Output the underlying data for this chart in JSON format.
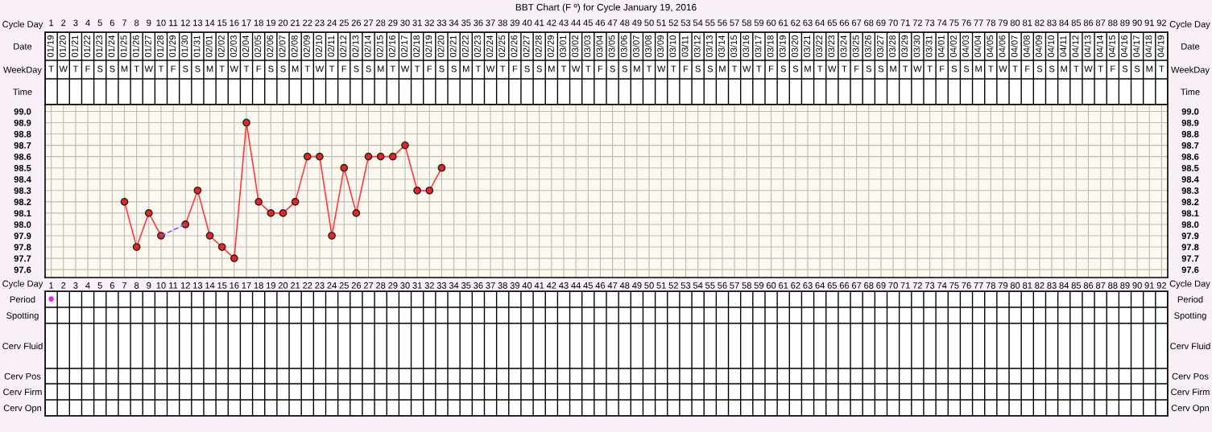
{
  "chart_data": [
    {
      "type": "heatmap",
      "title": "BBT Chart (F º) for Cycle January 19, 2016",
      "xlabel": "Cycle Day",
      "categories": [
        "1",
        "2",
        "3",
        "4",
        "5",
        "6",
        "7",
        "8",
        "9",
        "10",
        "11",
        "12",
        "13",
        "14",
        "15",
        "16",
        "17",
        "18",
        "19",
        "20",
        "21",
        "22",
        "23",
        "24",
        "25",
        "26",
        "27",
        "28",
        "29",
        "30",
        "31",
        "32",
        "33",
        "34",
        "35",
        "36",
        "37",
        "38",
        "39",
        "40",
        "41",
        "42",
        "43",
        "44",
        "45",
        "46",
        "47",
        "48",
        "49",
        "50",
        "51",
        "52",
        "53",
        "54",
        "55",
        "56",
        "57",
        "58",
        "59",
        "60",
        "61",
        "62",
        "63",
        "64",
        "65",
        "66",
        "67",
        "68",
        "69",
        "70",
        "71",
        "72",
        "73",
        "74",
        "75",
        "76",
        "77",
        "78",
        "79",
        "80",
        "81",
        "82",
        "83",
        "84",
        "85",
        "86",
        "87",
        "88",
        "89",
        "90",
        "91",
        "92"
      ],
      "y_categories": [
        "Date",
        "WeekDay",
        "Time"
      ],
      "y2_categories": [
        "Date",
        "WeekDay",
        "Time"
      ],
      "cells": [
        [
          null,
          null,
          null,
          null,
          null,
          null,
          null,
          null,
          null,
          null,
          null,
          null,
          null,
          null,
          null,
          null,
          null,
          null,
          null,
          null,
          null,
          null,
          null,
          null,
          null,
          null,
          null,
          null,
          null,
          null,
          null,
          null,
          null,
          null,
          null,
          null,
          null,
          null,
          null,
          null,
          null,
          null,
          null,
          null,
          null,
          null,
          null,
          null,
          null,
          null,
          null,
          null,
          null,
          null,
          null,
          null,
          null,
          null,
          null,
          null,
          null,
          null,
          null,
          null,
          null,
          null,
          null,
          null,
          null,
          null,
          null,
          null,
          null,
          null,
          null,
          null,
          null,
          null,
          null,
          null,
          null,
          null,
          null,
          null,
          null,
          null,
          null,
          null,
          null,
          null,
          null,
          null
        ],
        [
          null,
          null,
          null,
          null,
          null,
          null,
          null,
          null,
          null,
          null,
          null,
          null,
          null,
          null,
          null,
          null,
          null,
          null,
          null,
          null,
          null,
          null,
          null,
          null,
          null,
          null,
          null,
          null,
          null,
          null,
          null,
          null,
          null,
          null,
          null,
          null,
          null,
          null,
          null,
          null,
          null,
          null,
          null,
          null,
          null,
          null,
          null,
          null,
          null,
          null,
          null,
          null,
          null,
          null,
          null,
          null,
          null,
          null,
          null,
          null,
          null,
          null,
          null,
          null,
          null,
          null,
          null,
          null,
          null,
          null,
          null,
          null,
          null,
          null,
          null,
          null,
          null,
          null,
          null,
          null,
          null,
          null,
          null,
          null,
          null,
          null,
          null,
          null,
          null,
          null,
          null,
          null
        ],
        [
          null,
          null,
          null,
          null,
          null,
          null,
          null,
          null,
          null,
          null,
          null,
          null,
          null,
          null,
          null,
          null,
          null,
          null,
          null,
          null,
          null,
          null,
          null,
          null,
          null,
          null,
          null,
          null,
          null,
          null,
          null,
          null,
          null,
          null,
          null,
          null,
          null,
          null,
          null,
          null,
          null,
          null,
          null,
          null,
          null,
          null,
          null,
          null,
          null,
          null,
          null,
          null,
          null,
          null,
          null,
          null,
          null,
          null,
          null,
          null,
          null,
          null,
          null,
          null,
          null,
          null,
          null,
          null,
          null,
          null,
          null,
          null,
          null,
          null,
          null,
          null,
          null,
          null,
          null,
          null,
          null,
          null,
          null,
          null,
          null,
          null,
          null,
          null,
          null,
          null,
          null,
          null
        ]
      ],
      "cell_labels": [
        [
          "01/19",
          "01/20",
          "01/21",
          "01/22",
          "01/23",
          "01/24",
          "01/25",
          "01/26",
          "01/27",
          "01/28",
          "01/29",
          "01/30",
          "01/31",
          "02/01",
          "02/02",
          "02/03",
          "02/04",
          "02/05",
          "02/06",
          "02/07",
          "02/08",
          "02/09",
          "02/10",
          "02/11",
          "02/12",
          "02/13",
          "02/14",
          "02/15",
          "02/16",
          "02/17",
          "02/18",
          "02/19",
          "02/20",
          "02/21",
          "02/22",
          "02/23",
          "02/24",
          "02/25",
          "02/26",
          "02/27",
          "02/28",
          "02/29",
          "03/01",
          "03/02",
          "03/03",
          "03/04",
          "03/05",
          "03/06",
          "03/07",
          "03/08",
          "03/09",
          "03/10",
          "03/11",
          "03/12",
          "03/13",
          "03/14",
          "03/15",
          "03/16",
          "03/17",
          "03/18",
          "03/19",
          "03/20",
          "03/21",
          "03/22",
          "03/23",
          "03/24",
          "03/25",
          "03/26",
          "03/27",
          "03/28",
          "03/29",
          "03/30",
          "03/31",
          "04/01",
          "04/02",
          "04/03",
          "04/04",
          "04/05",
          "04/06",
          "04/07",
          "04/08",
          "04/09",
          "04/10",
          "04/11",
          "04/12",
          "04/13",
          "04/14",
          "04/15",
          "04/16",
          "04/17",
          "04/18",
          "04/19"
        ],
        [
          "T",
          "W",
          "T",
          "F",
          "S",
          "S",
          "M",
          "T",
          "W",
          "T",
          "F",
          "S",
          "S",
          "M",
          "T",
          "W",
          "T",
          "F",
          "S",
          "S",
          "M",
          "T",
          "W",
          "T",
          "F",
          "S",
          "S",
          "M",
          "T",
          "W",
          "T",
          "F",
          "S",
          "S",
          "M",
          "T",
          "W",
          "T",
          "F",
          "S",
          "S",
          "M",
          "T",
          "W",
          "T",
          "F",
          "S",
          "S",
          "M",
          "T",
          "W",
          "T",
          "F",
          "S",
          "S",
          "M",
          "T",
          "W",
          "T",
          "F",
          "S",
          "S",
          "M",
          "T",
          "W",
          "T",
          "F",
          "S",
          "S",
          "M",
          "T",
          "W",
          "T",
          "F",
          "S",
          "S",
          "M",
          "T",
          "W",
          "T",
          "F",
          "S",
          "S",
          "M",
          "T",
          "W",
          "T",
          "F",
          "S",
          "S",
          "M",
          "T"
        ],
        [
          null,
          null,
          null,
          null,
          null,
          null,
          null,
          null,
          null,
          null,
          null,
          null,
          null,
          null,
          null,
          null,
          null,
          null,
          null,
          null,
          null,
          null,
          null,
          null,
          null,
          null,
          null,
          null,
          null,
          null,
          null,
          null,
          null,
          null,
          null,
          null,
          null,
          null,
          null,
          null,
          null,
          null,
          null,
          null,
          null,
          null,
          null,
          null,
          null,
          null,
          null,
          null,
          null,
          null,
          null,
          null,
          null,
          null,
          null,
          null,
          null,
          null,
          null,
          null,
          null,
          null,
          null,
          null,
          null,
          null,
          null,
          null,
          null,
          null,
          null,
          null,
          null,
          null,
          null,
          null,
          null,
          null,
          null,
          null,
          null,
          null,
          null,
          null,
          null,
          null,
          null,
          null
        ]
      ]
    },
    {
      "type": "line",
      "xlabel": "Cycle Day",
      "xlim": [
        0.5,
        92.5
      ],
      "xticks": [
        1,
        2,
        3,
        4,
        5,
        6,
        7,
        8,
        9,
        10,
        11,
        12,
        13,
        14,
        15,
        16,
        17,
        18,
        19,
        20,
        21,
        22,
        23,
        24,
        25,
        26,
        27,
        28,
        29,
        30,
        31,
        32,
        33,
        34,
        35,
        36,
        37,
        38,
        39,
        40,
        41,
        42,
        43,
        44,
        45,
        46,
        47,
        48,
        49,
        50,
        51,
        52,
        53,
        54,
        55,
        56,
        57,
        58,
        59,
        60,
        61,
        62,
        63,
        64,
        65,
        66,
        67,
        68,
        69,
        70,
        71,
        72,
        73,
        74,
        75,
        76,
        77,
        78,
        79,
        80,
        81,
        82,
        83,
        84,
        85,
        86,
        87,
        88,
        89,
        90,
        91,
        92
      ],
      "ylim": [
        97.53,
        99.06
      ],
      "yticks": [
        97.6,
        97.7,
        97.8,
        97.9,
        {
          "value": 98,
          "label": "98.0"
        },
        98.1,
        98.2,
        98.3,
        98.4,
        98.5,
        98.6,
        98.7,
        98.8,
        98.9,
        {
          "value": 99,
          "label": "99.0"
        }
      ],
      "y2lim": [
        97.53,
        99.06
      ],
      "y2ticks": [
        97.6,
        97.7,
        97.8,
        97.9,
        {
          "value": 98,
          "label": "98.0"
        },
        98.1,
        98.2,
        98.3,
        98.4,
        98.5,
        98.6,
        98.7,
        98.8,
        98.9,
        {
          "value": 99,
          "label": "99.0"
        }
      ],
      "grid": true,
      "marker": "circle",
      "series": [
        {
          "color": "#ff4040",
          "line_style": "solid",
          "x": [
            7,
            8,
            9,
            10,
            11,
            12,
            13,
            14,
            15,
            16,
            17,
            18,
            19,
            20,
            21,
            22,
            23,
            24,
            25,
            26,
            27,
            28,
            29,
            30,
            31,
            32,
            33
          ],
          "values": [
            98.2,
            97.8,
            98.1,
            97.9,
            null,
            98.0,
            98.3,
            97.9,
            97.8,
            97.7,
            98.9,
            98.2,
            98.1,
            98.1,
            98.2,
            98.6,
            98.6,
            97.9,
            98.5,
            98.1,
            98.6,
            98.6,
            98.6,
            98.7,
            98.3,
            98.3,
            98.5
          ]
        },
        {
          "color": "#6666ff",
          "line_style": "dashed",
          "marker": "none",
          "x": [
            10,
            12
          ],
          "values": [
            97.9,
            98.0
          ]
        }
      ]
    },
    {
      "type": "heatmap",
      "tick_labels": "y",
      "categories": [
        "1",
        "2",
        "3",
        "4",
        "5",
        "6",
        "7",
        "8",
        "9",
        "10",
        "11",
        "12",
        "13",
        "14",
        "15",
        "16",
        "17",
        "18",
        "19",
        "20",
        "21",
        "22",
        "23",
        "24",
        "25",
        "26",
        "27",
        "28",
        "29",
        "30",
        "31",
        "32",
        "33",
        "34",
        "35",
        "36",
        "37",
        "38",
        "39",
        "40",
        "41",
        "42",
        "43",
        "44",
        "45",
        "46",
        "47",
        "48",
        "49",
        "50",
        "51",
        "52",
        "53",
        "54",
        "55",
        "56",
        "57",
        "58",
        "59",
        "60",
        "61",
        "62",
        "63",
        "64",
        "65",
        "66",
        "67",
        "68",
        "69",
        "70",
        "71",
        "72",
        "73",
        "74",
        "75",
        "76",
        "77",
        "78",
        "79",
        "80",
        "81",
        "82",
        "83",
        "84",
        "85",
        "86",
        "87",
        "88",
        "89",
        "90",
        "91",
        "92"
      ],
      "y_categories": [
        "Period",
        "Spotting",
        "Cerv Fluid",
        "Cerv Pos",
        "Cerv Firm",
        "Cerv Opn"
      ],
      "y2_categories": [
        "Period",
        "Spotting",
        "Cerv Fluid",
        "Cerv Pos",
        "Cerv Firm",
        "Cerv Opn"
      ],
      "cells": [
        [
          null,
          null,
          null,
          null,
          null,
          null,
          null,
          null,
          null,
          null,
          null,
          null,
          null,
          null,
          null,
          null,
          null,
          null,
          null,
          null,
          null,
          null,
          null,
          null,
          null,
          null,
          null,
          null,
          null,
          null,
          null,
          null,
          null,
          null,
          null,
          null,
          null,
          null,
          null,
          null,
          null,
          null,
          null,
          null,
          null,
          null,
          null,
          null,
          null,
          null,
          null,
          null,
          null,
          null,
          null,
          null,
          null,
          null,
          null,
          null,
          null,
          null,
          null,
          null,
          null,
          null,
          null,
          null,
          null,
          null,
          null,
          null,
          null,
          null,
          null,
          null,
          null,
          null,
          null,
          null,
          null,
          null,
          null,
          null,
          null,
          null,
          null,
          null,
          null,
          null,
          null,
          null
        ],
        [
          null,
          null,
          null,
          null,
          null,
          null,
          null,
          null,
          null,
          null,
          null,
          null,
          null,
          null,
          null,
          null,
          null,
          null,
          null,
          null,
          null,
          null,
          null,
          null,
          null,
          null,
          null,
          null,
          null,
          null,
          null,
          null,
          null,
          null,
          null,
          null,
          null,
          null,
          null,
          null,
          null,
          null,
          null,
          null,
          null,
          null,
          null,
          null,
          null,
          null,
          null,
          null,
          null,
          null,
          null,
          null,
          null,
          null,
          null,
          null,
          null,
          null,
          null,
          null,
          null,
          null,
          null,
          null,
          null,
          null,
          null,
          null,
          null,
          null,
          null,
          null,
          null,
          null,
          null,
          null,
          null,
          null,
          null,
          null,
          null,
          null,
          null,
          null,
          null,
          null,
          null,
          null
        ],
        [
          null,
          null,
          null,
          null,
          null,
          null,
          null,
          null,
          null,
          null,
          null,
          null,
          null,
          null,
          null,
          null,
          null,
          null,
          null,
          null,
          null,
          null,
          null,
          null,
          null,
          null,
          null,
          null,
          null,
          null,
          null,
          null,
          null,
          null,
          null,
          null,
          null,
          null,
          null,
          null,
          null,
          null,
          null,
          null,
          null,
          null,
          null,
          null,
          null,
          null,
          null,
          null,
          null,
          null,
          null,
          null,
          null,
          null,
          null,
          null,
          null,
          null,
          null,
          null,
          null,
          null,
          null,
          null,
          null,
          null,
          null,
          null,
          null,
          null,
          null,
          null,
          null,
          null,
          null,
          null,
          null,
          null,
          null,
          null,
          null,
          null,
          null,
          null,
          null,
          null,
          null,
          null
        ],
        [
          null,
          null,
          null,
          null,
          null,
          null,
          null,
          null,
          null,
          null,
          null,
          null,
          null,
          null,
          null,
          null,
          null,
          null,
          null,
          null,
          null,
          null,
          null,
          null,
          null,
          null,
          null,
          null,
          null,
          null,
          null,
          null,
          null,
          null,
          null,
          null,
          null,
          null,
          null,
          null,
          null,
          null,
          null,
          null,
          null,
          null,
          null,
          null,
          null,
          null,
          null,
          null,
          null,
          null,
          null,
          null,
          null,
          null,
          null,
          null,
          null,
          null,
          null,
          null,
          null,
          null,
          null,
          null,
          null,
          null,
          null,
          null,
          null,
          null,
          null,
          null,
          null,
          null,
          null,
          null,
          null,
          null,
          null,
          null,
          null,
          null,
          null,
          null,
          null,
          null,
          null,
          null
        ],
        [
          null,
          null,
          null,
          null,
          null,
          null,
          null,
          null,
          null,
          null,
          null,
          null,
          null,
          null,
          null,
          null,
          null,
          null,
          null,
          null,
          null,
          null,
          null,
          null,
          null,
          null,
          null,
          null,
          null,
          null,
          null,
          null,
          null,
          null,
          null,
          null,
          null,
          null,
          null,
          null,
          null,
          null,
          null,
          null,
          null,
          null,
          null,
          null,
          null,
          null,
          null,
          null,
          null,
          null,
          null,
          null,
          null,
          null,
          null,
          null,
          null,
          null,
          null,
          null,
          null,
          null,
          null,
          null,
          null,
          null,
          null,
          null,
          null,
          null,
          null,
          null,
          null,
          null,
          null,
          null,
          null,
          null,
          null,
          null,
          null,
          null,
          null,
          null,
          null,
          null,
          null,
          null
        ],
        [
          null,
          null,
          null,
          null,
          null,
          null,
          null,
          null,
          null,
          null,
          null,
          null,
          null,
          null,
          null,
          null,
          null,
          null,
          null,
          null,
          null,
          null,
          null,
          null,
          null,
          null,
          null,
          null,
          null,
          null,
          null,
          null,
          null,
          null,
          null,
          null,
          null,
          null,
          null,
          null,
          null,
          null,
          null,
          null,
          null,
          null,
          null,
          null,
          null,
          null,
          null,
          null,
          null,
          null,
          null,
          null,
          null,
          null,
          null,
          null,
          null,
          null,
          null,
          null,
          null,
          null,
          null,
          null,
          null,
          null,
          null,
          null,
          null,
          null,
          null,
          null,
          null,
          null,
          null,
          null,
          null,
          null,
          null,
          null,
          null,
          null,
          null,
          null,
          null,
          null,
          null,
          null
        ]
      ],
      "cell_labels": [
        [
          "●",
          null,
          null,
          null,
          null,
          null,
          null,
          null,
          null,
          null,
          null,
          null,
          null,
          null,
          null,
          null,
          null,
          null,
          null,
          null,
          null,
          null,
          null,
          null,
          null,
          null,
          null,
          null,
          null,
          null,
          null,
          null,
          null,
          null,
          null,
          null,
          null,
          null,
          null,
          null,
          null,
          null,
          null,
          null,
          null,
          null,
          null,
          null,
          null,
          null,
          null,
          null,
          null,
          null,
          null,
          null,
          null,
          null,
          null,
          null,
          null,
          null,
          null,
          null,
          null,
          null,
          null,
          null,
          null,
          null,
          null,
          null,
          null,
          null,
          null,
          null,
          null,
          null,
          null,
          null,
          null,
          null,
          null,
          null,
          null,
          null,
          null,
          null,
          null,
          null,
          null,
          null
        ]
      ]
    }
  ]
}
